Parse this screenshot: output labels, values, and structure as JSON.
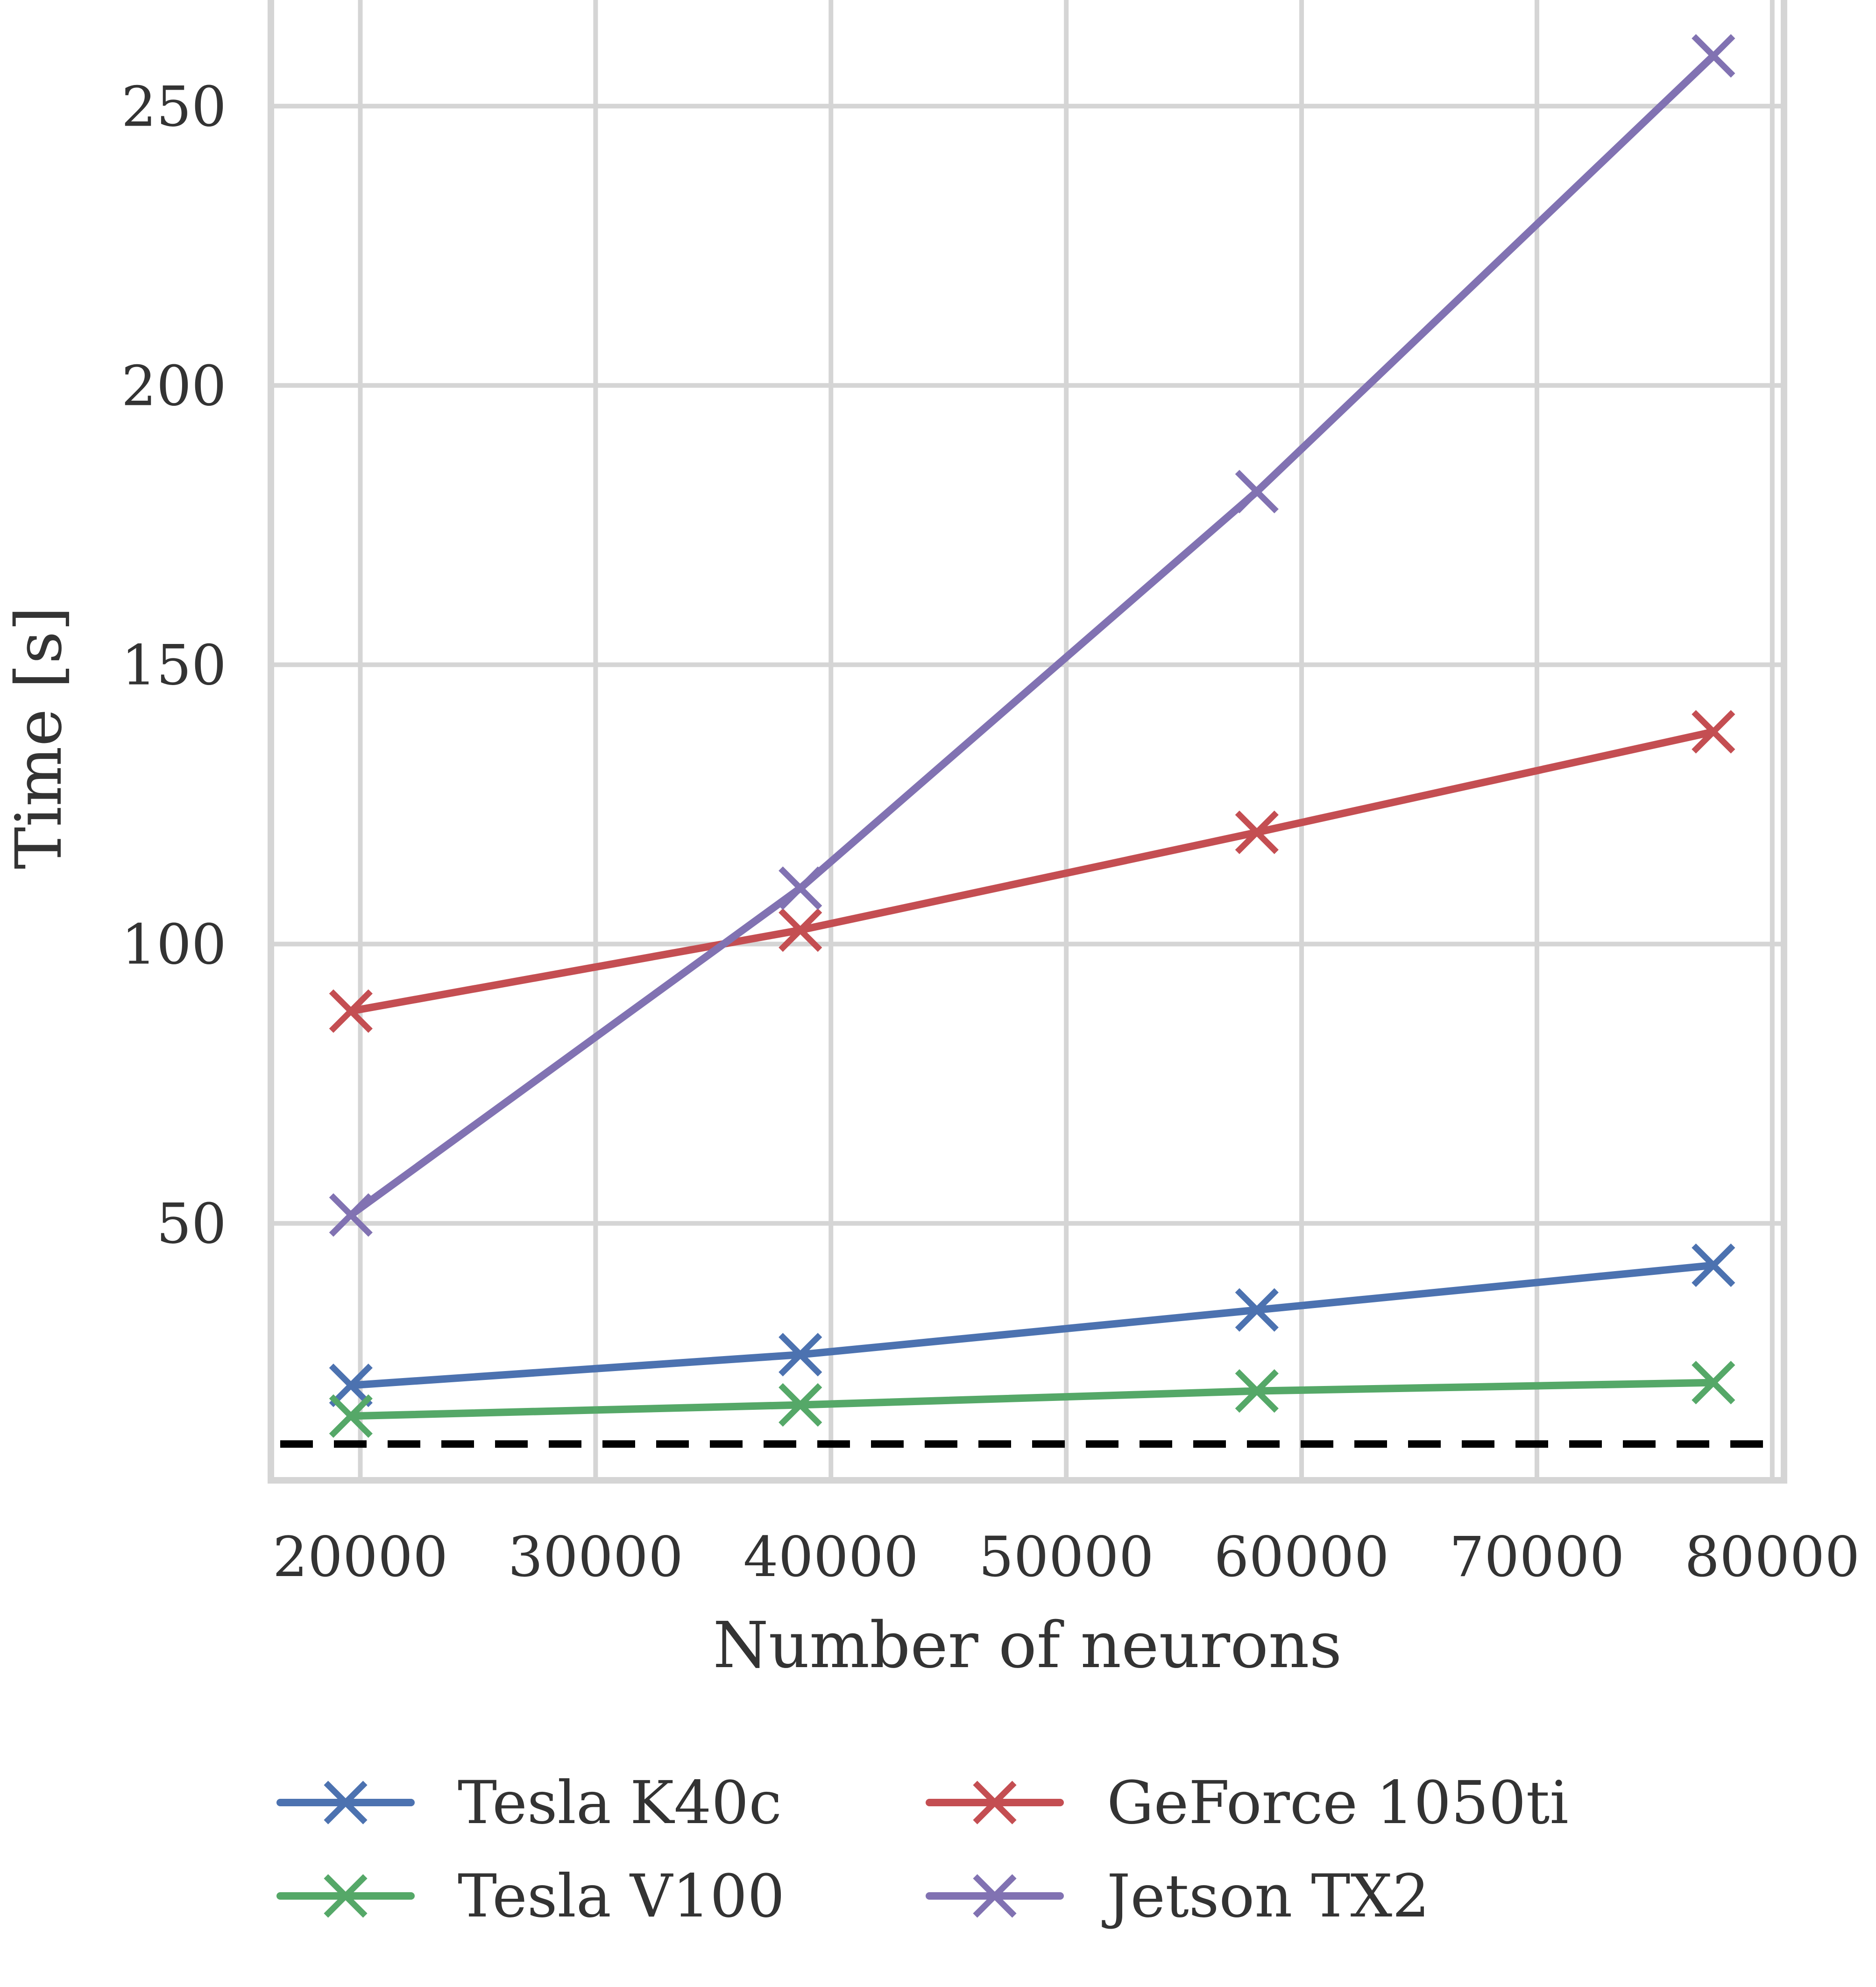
{
  "chart_data": {
    "type": "line",
    "title": "",
    "xlabel": "Number of neurons",
    "ylabel": "Time [s]",
    "xlim": [
      16200,
      80500
    ],
    "ylim": [
      4,
      269
    ],
    "xticks": [
      20000,
      30000,
      40000,
      50000,
      60000,
      70000,
      80000
    ],
    "xtick_labels": [
      "20000",
      "30000",
      "40000",
      "50000",
      "60000",
      "70000",
      "80000"
    ],
    "yticks": [
      50,
      100,
      150,
      200,
      250
    ],
    "ytick_labels": [
      "50",
      "100",
      "150",
      "200",
      "250"
    ],
    "grid": true,
    "legend_position": "bottom",
    "reference_line": {
      "y": 10.5,
      "style": "dashed",
      "color": "#000000"
    },
    "x": [
      19600,
      38700,
      58100,
      77500
    ],
    "series": [
      {
        "name": "Tesla K40c",
        "color": "#4c72b0",
        "marker": "x",
        "values": [
          21,
          26.5,
          34.5,
          42.5
        ]
      },
      {
        "name": "GeForce 1050ti",
        "color": "#c44e52",
        "marker": "x",
        "values": [
          88,
          102.5,
          120,
          138
        ]
      },
      {
        "name": "Tesla V100",
        "color": "#55a868",
        "marker": "x",
        "values": [
          15.5,
          17.5,
          20,
          21.5
        ]
      },
      {
        "name": "Jetson TX2",
        "color": "#8172b2",
        "marker": "x",
        "values": [
          51.5,
          110,
          181,
          259
        ]
      }
    ]
  }
}
